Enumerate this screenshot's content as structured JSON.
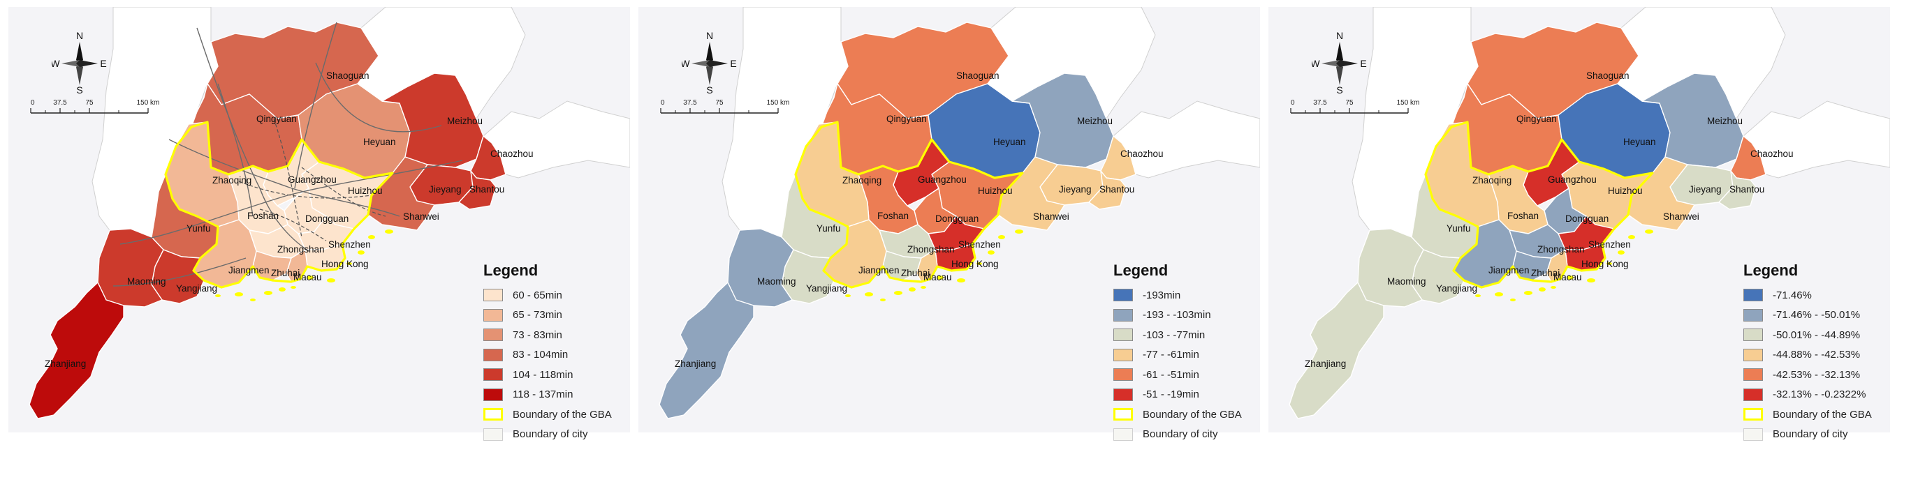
{
  "compass": {
    "n": "N",
    "s": "S",
    "e": "E",
    "w": "W"
  },
  "scale": {
    "ticks": [
      "0",
      "37.5",
      "75",
      "150 km"
    ]
  },
  "legend_title": "Legend",
  "boundary_gba": "Boundary of the GBA",
  "boundary_city": "Boundary of city",
  "colors": {
    "gba_boundary": "#ffff00",
    "background": "#f4f4f7",
    "neighbor": "#ffffff",
    "road": "#6b6b6b",
    "rail": "#555555"
  },
  "panels": [
    {
      "id": "panel-1",
      "classes": [
        {
          "label": "60 - 65min",
          "color": "#fde4cd"
        },
        {
          "label": "65 - 73min",
          "color": "#f2b896"
        },
        {
          "label": "73 - 83min",
          "color": "#e49273"
        },
        {
          "label": "83 - 104min",
          "color": "#d6674f"
        },
        {
          "label": "104 - 118min",
          "color": "#cc3a2c"
        },
        {
          "label": "118 - 137min",
          "color": "#bd0b0b"
        }
      ],
      "city_class": {
        "Shaoguan": 3,
        "Qingyuan": 3,
        "Heyuan": 2,
        "Meizhou": 4,
        "Chaozhou": 4,
        "Jieyang": 4,
        "Shantou": 4,
        "Shanwei": 3,
        "Huizhou": 0,
        "Guangzhou": 0,
        "Dongguan": 0,
        "Foshan": 0,
        "Zhaoqing": 1,
        "Yunfu": 3,
        "Jiangmen": 1,
        "Zhongshan": 0,
        "Zhuhai": 1,
        "Macau": 1,
        "Shenzhen": 0,
        "Hong Kong": 0,
        "Maoming": 4,
        "Yangjiang": 4,
        "Zhanjiang": 5
      },
      "show_network": true
    },
    {
      "id": "panel-2",
      "classes": [
        {
          "label": "-193min",
          "color": "#4674b8"
        },
        {
          "label": "-193 - -103min",
          "color": "#8fa4bd"
        },
        {
          "label": "-103 - -77min",
          "color": "#d8dcc7"
        },
        {
          "label": "-77 - -61min",
          "color": "#f7cd92"
        },
        {
          "label": "-61 - -51min",
          "color": "#ec7d54"
        },
        {
          "label": "-51 - -19min",
          "color": "#d62f29"
        }
      ],
      "city_class": {
        "Shaoguan": 4,
        "Qingyuan": 4,
        "Heyuan": 0,
        "Meizhou": 1,
        "Chaozhou": 3,
        "Jieyang": 3,
        "Shantou": 3,
        "Shanwei": 3,
        "Huizhou": 4,
        "Guangzhou": 5,
        "Dongguan": 4,
        "Foshan": 4,
        "Zhaoqing": 3,
        "Yunfu": 2,
        "Jiangmen": 3,
        "Zhongshan": 2,
        "Zhuhai": 2,
        "Macau": 3,
        "Shenzhen": 5,
        "Hong Kong": 5,
        "Maoming": 1,
        "Yangjiang": 2,
        "Zhanjiang": 1
      },
      "show_network": false
    },
    {
      "id": "panel-3",
      "classes": [
        {
          "label": "-71.46%",
          "color": "#4674b8"
        },
        {
          "label": "-71.46% - -50.01%",
          "color": "#8fa4bd"
        },
        {
          "label": "-50.01% - -44.89%",
          "color": "#d8dcc7"
        },
        {
          "label": "-44.88% - -42.53%",
          "color": "#f7cd92"
        },
        {
          "label": "-42.53% - -32.13%",
          "color": "#ec7d54"
        },
        {
          "label": "-32.13% - -0.2322%",
          "color": "#d62f29"
        }
      ],
      "city_class": {
        "Shaoguan": 4,
        "Qingyuan": 4,
        "Heyuan": 0,
        "Meizhou": 1,
        "Chaozhou": 4,
        "Jieyang": 2,
        "Shantou": 2,
        "Shanwei": 3,
        "Huizhou": 3,
        "Guangzhou": 5,
        "Dongguan": 1,
        "Foshan": 3,
        "Zhaoqing": 3,
        "Yunfu": 2,
        "Jiangmen": 1,
        "Zhongshan": 1,
        "Zhuhai": 1,
        "Macau": 3,
        "Shenzhen": 5,
        "Hong Kong": 5,
        "Maoming": 2,
        "Yangjiang": 2,
        "Zhanjiang": 2
      },
      "show_network": false
    }
  ]
}
